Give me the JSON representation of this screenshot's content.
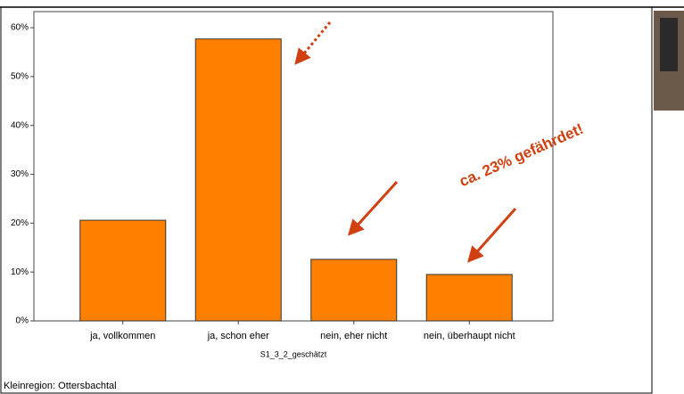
{
  "chart_data": {
    "type": "bar",
    "categories": [
      "ja, vollkommen",
      "ja, schon eher",
      "nein, eher nicht",
      "nein, überhaupt nicht"
    ],
    "values": [
      20.6,
      57.7,
      12.6,
      9.5
    ],
    "color": "#ff8000",
    "x_label": "S1_3_2_geschätzt",
    "ylim": [
      0,
      63.3
    ],
    "yticks": [
      {
        "value": 0,
        "label": "0%"
      },
      {
        "value": 10,
        "label": "10%"
      },
      {
        "value": 20,
        "label": "20%"
      },
      {
        "value": 30,
        "label": "30%"
      },
      {
        "value": 40,
        "label": "40%"
      },
      {
        "value": 50,
        "label": "50%"
      },
      {
        "value": 60,
        "label": "60%"
      }
    ],
    "annotation": "ca. 23% gefährdet!",
    "footer": "Kleinregion: Ottersbachtal"
  }
}
